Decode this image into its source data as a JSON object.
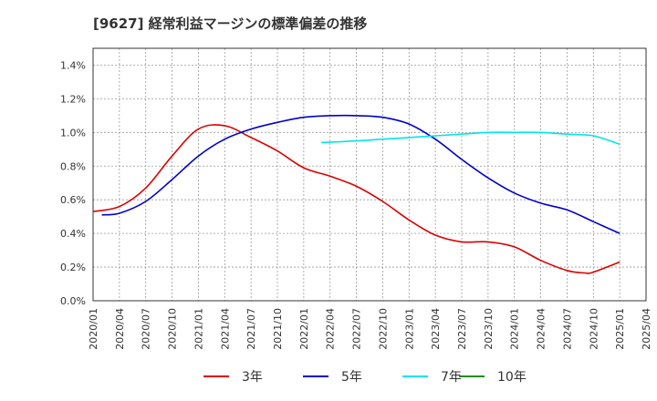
{
  "title": "[9627]  経常利益マージンの標準偏差の推移",
  "chart_data": {
    "type": "line",
    "title": "[9627]  経常利益マージンの標準偏差の推移",
    "xlabel": "",
    "ylabel": "",
    "ylim": [
      0.0,
      1.5
    ],
    "yticks": [
      "0.0%",
      "0.2%",
      "0.4%",
      "0.6%",
      "0.8%",
      "1.0%",
      "1.2%",
      "1.4%"
    ],
    "ytick_values": [
      0.0,
      0.2,
      0.4,
      0.6,
      0.8,
      1.0,
      1.2,
      1.4
    ],
    "xticks": [
      "2020/01",
      "2020/04",
      "2020/07",
      "2020/10",
      "2021/01",
      "2021/04",
      "2021/07",
      "2021/10",
      "2022/01",
      "2022/04",
      "2022/07",
      "2022/10",
      "2023/01",
      "2023/04",
      "2023/07",
      "2023/10",
      "2024/01",
      "2024/04",
      "2024/07",
      "2024/10",
      "2025/01",
      "2025/04"
    ],
    "grid": true,
    "legend_position": "bottom",
    "series": [
      {
        "name": "3年",
        "color": "#dd0000",
        "points": [
          [
            "2020/01",
            0.53
          ],
          [
            "2020/04",
            0.56
          ],
          [
            "2020/07",
            0.67
          ],
          [
            "2020/10",
            0.86
          ],
          [
            "2021/01",
            1.02
          ],
          [
            "2021/04",
            1.04
          ],
          [
            "2021/07",
            0.97
          ],
          [
            "2021/10",
            0.89
          ],
          [
            "2022/01",
            0.79
          ],
          [
            "2022/04",
            0.74
          ],
          [
            "2022/07",
            0.68
          ],
          [
            "2022/10",
            0.59
          ],
          [
            "2023/01",
            0.48
          ],
          [
            "2023/04",
            0.39
          ],
          [
            "2023/07",
            0.35
          ],
          [
            "2023/10",
            0.35
          ],
          [
            "2024/01",
            0.32
          ],
          [
            "2024/04",
            0.24
          ],
          [
            "2024/07",
            0.18
          ],
          [
            "2024/09",
            0.165
          ],
          [
            "2024/10",
            0.17
          ],
          [
            "2025/01",
            0.23
          ]
        ]
      },
      {
        "name": "5年",
        "color": "#0000cc",
        "points": [
          [
            "2020/02",
            0.51
          ],
          [
            "2020/04",
            0.52
          ],
          [
            "2020/07",
            0.59
          ],
          [
            "2020/10",
            0.72
          ],
          [
            "2021/01",
            0.86
          ],
          [
            "2021/04",
            0.96
          ],
          [
            "2021/07",
            1.02
          ],
          [
            "2021/10",
            1.06
          ],
          [
            "2022/01",
            1.09
          ],
          [
            "2022/04",
            1.1
          ],
          [
            "2022/07",
            1.1
          ],
          [
            "2022/10",
            1.09
          ],
          [
            "2023/01",
            1.05
          ],
          [
            "2023/04",
            0.96
          ],
          [
            "2023/07",
            0.84
          ],
          [
            "2023/10",
            0.73
          ],
          [
            "2024/01",
            0.64
          ],
          [
            "2024/04",
            0.58
          ],
          [
            "2024/07",
            0.54
          ],
          [
            "2024/10",
            0.47
          ],
          [
            "2025/01",
            0.4
          ]
        ]
      },
      {
        "name": "7年",
        "color": "#00e5ee",
        "points": [
          [
            "2022/03",
            0.94
          ],
          [
            "2022/07",
            0.95
          ],
          [
            "2022/10",
            0.96
          ],
          [
            "2023/01",
            0.97
          ],
          [
            "2023/04",
            0.98
          ],
          [
            "2023/07",
            0.99
          ],
          [
            "2023/10",
            1.0
          ],
          [
            "2024/01",
            1.0
          ],
          [
            "2024/04",
            1.0
          ],
          [
            "2024/07",
            0.99
          ],
          [
            "2024/10",
            0.98
          ],
          [
            "2025/01",
            0.93
          ]
        ]
      },
      {
        "name": "10年",
        "color": "#228b22",
        "points": []
      }
    ]
  }
}
